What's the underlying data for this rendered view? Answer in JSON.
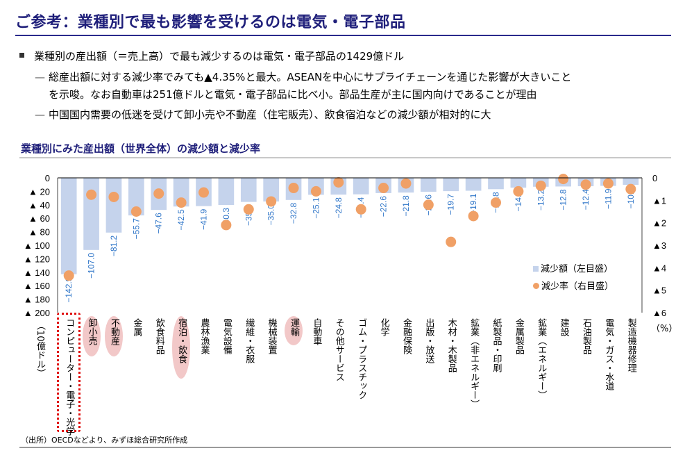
{
  "header": {
    "title": "ご参考：業種別で最も影響を受けるのは電気・電子部品"
  },
  "bullets": {
    "main": "業種別の産出額（＝売上高）で最も減少するのは電気・電子部品の1429億ドル",
    "sub1_line1": "総産出額に対する減少率でみても▲4.35%と最大。ASEANを中心にサプライチェーンを通じた影響が大きいこと",
    "sub1_line2": "を示唆。なお自動車は251億ドルと電気・電子部品に比べ小。部品生産が主に国内向けであることが理由",
    "sub2": "中国国内需要の低迷を受けて卸小売や不動産（住宅販売）、飲食宿泊などの減少額が相対的に大",
    "dash": "—"
  },
  "source": "（出所）OECDなどより、みずほ総合研究所作成",
  "colors": {
    "title": "#1f1f7a",
    "bar": "#c5d3ec",
    "dot": "#f0a066",
    "label": "#2e75c8",
    "highlight": "#f2c8c8",
    "dotted_box": "#e01010"
  },
  "chart_data": {
    "type": "bar",
    "title": "業種別にみた産出額（世界全体）の減少額と減少率",
    "xlabel": "",
    "ylabel_left": "（10億ドル）",
    "ylabel_right": "（%）",
    "ylim_left": [
      0,
      200
    ],
    "ylim_right": [
      0,
      6
    ],
    "left_ticks": [
      "0",
      "▲ 20",
      "▲ 40",
      "▲ 60",
      "▲ 80",
      "▲ 100",
      "▲ 120",
      "▲ 140",
      "▲ 160",
      "▲ 180",
      "▲ 200"
    ],
    "right_ticks": [
      "0",
      "▲1",
      "▲2",
      "▲3",
      "▲4",
      "▲5",
      "▲6"
    ],
    "legend": {
      "position": "right-middle",
      "bar": "減少額（左目盛）",
      "dot": "減少率（右目盛）"
    },
    "categories": [
      "コンピューター・電子・光学",
      "卸小売",
      "不動産",
      "金属",
      "飲食料品",
      "宿泊・飲食",
      "農林漁業",
      "電気設備",
      "繊維・衣服",
      "機械装置",
      "運輸",
      "自動車",
      "その他サービス",
      "ゴム・プラスチック",
      "化学",
      "金融保険",
      "出版・放送",
      "木材・木製品",
      "鉱業（非エネルギー）",
      "紙製品・印刷",
      "金属製品",
      "鉱業（エネルギー）",
      "建設",
      "石油製品",
      "電気・ガス・水道",
      "製造機器修理"
    ],
    "highlighted": [
      "卸小売",
      "不動産",
      "宿泊・飲食",
      "運輸"
    ],
    "boxed": [
      "コンピューター・電子・光学"
    ],
    "series": [
      {
        "name": "減少額（左目盛）",
        "unit": "10億ドル",
        "values": [
          -142.9,
          -107.0,
          -81.2,
          -55.7,
          -47.6,
          -42.5,
          -41.9,
          -40.3,
          -35.7,
          -35.0,
          -32.8,
          -25.1,
          -24.8,
          -24.4,
          -22.6,
          -21.8,
          -20.6,
          -19.7,
          -19.1,
          -16.8,
          -14.5,
          -13.2,
          -12.8,
          -12.4,
          -11.9,
          -10.4
        ],
        "labels": [
          "−142.9",
          "−107.0",
          "−81.2",
          "−55.7",
          "−47.6",
          "−42.5",
          "−41.9",
          "−40.3",
          "−35.7",
          "−35.0",
          "−32.8",
          "−25.1",
          "−24.8",
          "−24.4",
          "−22.6",
          "−21.8",
          "−20.6",
          "−19.7",
          "−19.1",
          "−16.8",
          "−14.5",
          "−13.2",
          "−12.8",
          "−12.4",
          "−11.9",
          "−10.4"
        ]
      },
      {
        "name": "減少率（右目盛）",
        "unit": "%",
        "values": [
          -4.35,
          -0.75,
          -0.85,
          -1.5,
          -0.7,
          -1.1,
          -0.65,
          -2.1,
          -1.4,
          -1.05,
          -0.45,
          -0.6,
          -0.2,
          -1.4,
          -0.45,
          -0.25,
          -1.2,
          -2.85,
          -1.7,
          -1.1,
          -0.6,
          -0.35,
          -0.05,
          -0.3,
          -0.25,
          -0.5
        ]
      }
    ]
  }
}
